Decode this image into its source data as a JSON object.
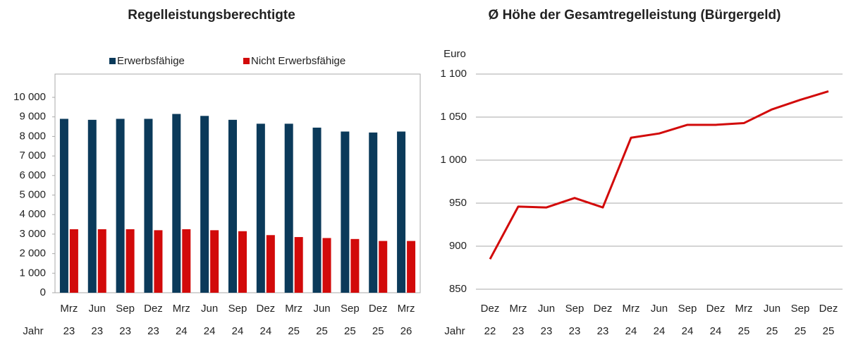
{
  "chart_data": [
    {
      "type": "bar",
      "title": "Regelleistungsberechtigte",
      "categories": [
        "Mrz",
        "Jun",
        "Sep",
        "Dez",
        "Mrz",
        "Jun",
        "Sep",
        "Dez",
        "Mrz",
        "Jun",
        "Sep",
        "Dez",
        "Mrz"
      ],
      "year_label": "Jahr",
      "years": [
        "23",
        "23",
        "23",
        "23",
        "24",
        "24",
        "24",
        "24",
        "25",
        "25",
        "25",
        "25",
        "26"
      ],
      "series": [
        {
          "name": "Erwerbsfähige",
          "color": "#0b3a5a",
          "values": [
            8900,
            8850,
            8900,
            8900,
            9150,
            9050,
            8850,
            8650,
            8650,
            8450,
            8250,
            8200,
            8250
          ]
        },
        {
          "name": "Nicht Erwerbsfähige",
          "color": "#d20a0a",
          "values": [
            3250,
            3250,
            3250,
            3200,
            3250,
            3200,
            3150,
            2950,
            2850,
            2800,
            2750,
            2650,
            2650
          ]
        }
      ],
      "ylim": [
        0,
        10000
      ],
      "yticks": [
        0,
        {
          "value": 1000,
          "label": "1 000"
        },
        {
          "value": 2000,
          "label": "2 000"
        },
        {
          "value": 3000,
          "label": "3 000"
        },
        {
          "value": 4000,
          "label": "4 000"
        },
        {
          "value": 5000,
          "label": "5 000"
        },
        {
          "value": 6000,
          "label": "6 000"
        },
        {
          "value": 7000,
          "label": "7 000"
        },
        {
          "value": 8000,
          "label": "8 000"
        },
        {
          "value": 9000,
          "label": "9 000"
        },
        {
          "value": 10000,
          "label": "10 000"
        }
      ],
      "grid": false,
      "legend": "top"
    },
    {
      "type": "line",
      "title": "Ø Höhe der Gesamtregelleistung (Bürgergeld)",
      "y_label": "Euro",
      "categories": [
        "Dez",
        "Mrz",
        "Jun",
        "Sep",
        "Dez",
        "Mrz",
        "Jun",
        "Sep",
        "Dez",
        "Mrz",
        "Jun",
        "Sep",
        "Dez"
      ],
      "year_label": "Jahr",
      "years": [
        "22",
        "23",
        "23",
        "23",
        "23",
        "24",
        "24",
        "24",
        "24",
        "25",
        "25",
        "25",
        "25"
      ],
      "series": [
        {
          "name": "Gesamtregelleistung",
          "color": "#d20a0a",
          "values": [
            885,
            946,
            945,
            956,
            945,
            1026,
            1031,
            1041,
            1041,
            1043,
            1059,
            1070,
            1080
          ]
        }
      ],
      "ylim": [
        850,
        1100
      ],
      "yticks": [
        850,
        900,
        950,
        {
          "value": 1000,
          "label": "1 000"
        },
        {
          "value": 1050,
          "label": "1 050"
        },
        {
          "value": 1100,
          "label": "1 100"
        }
      ],
      "grid": true
    }
  ]
}
